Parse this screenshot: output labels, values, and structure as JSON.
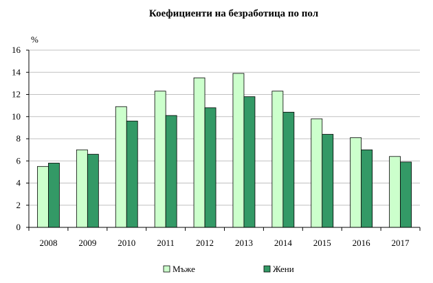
{
  "chart_data": {
    "type": "bar",
    "title": "Коефициенти на безработица по пол",
    "ylabel": "%",
    "xlabel": "",
    "ylim": [
      0,
      16
    ],
    "yticks": [
      0,
      2,
      4,
      6,
      8,
      10,
      12,
      14,
      16
    ],
    "grid": true,
    "legend_position": "bottom",
    "categories": [
      "2008",
      "2009",
      "2010",
      "2011",
      "2012",
      "2013",
      "2014",
      "2015",
      "2016",
      "2017"
    ],
    "series": [
      {
        "name": "Мъже",
        "color": "#ccffcc",
        "values": [
          5.5,
          7.0,
          10.9,
          12.3,
          13.5,
          13.9,
          12.3,
          9.8,
          8.1,
          6.4
        ]
      },
      {
        "name": "Жени",
        "color": "#339966",
        "values": [
          5.8,
          6.6,
          9.6,
          10.1,
          10.8,
          11.8,
          10.4,
          8.4,
          7.0,
          5.9
        ]
      }
    ]
  }
}
